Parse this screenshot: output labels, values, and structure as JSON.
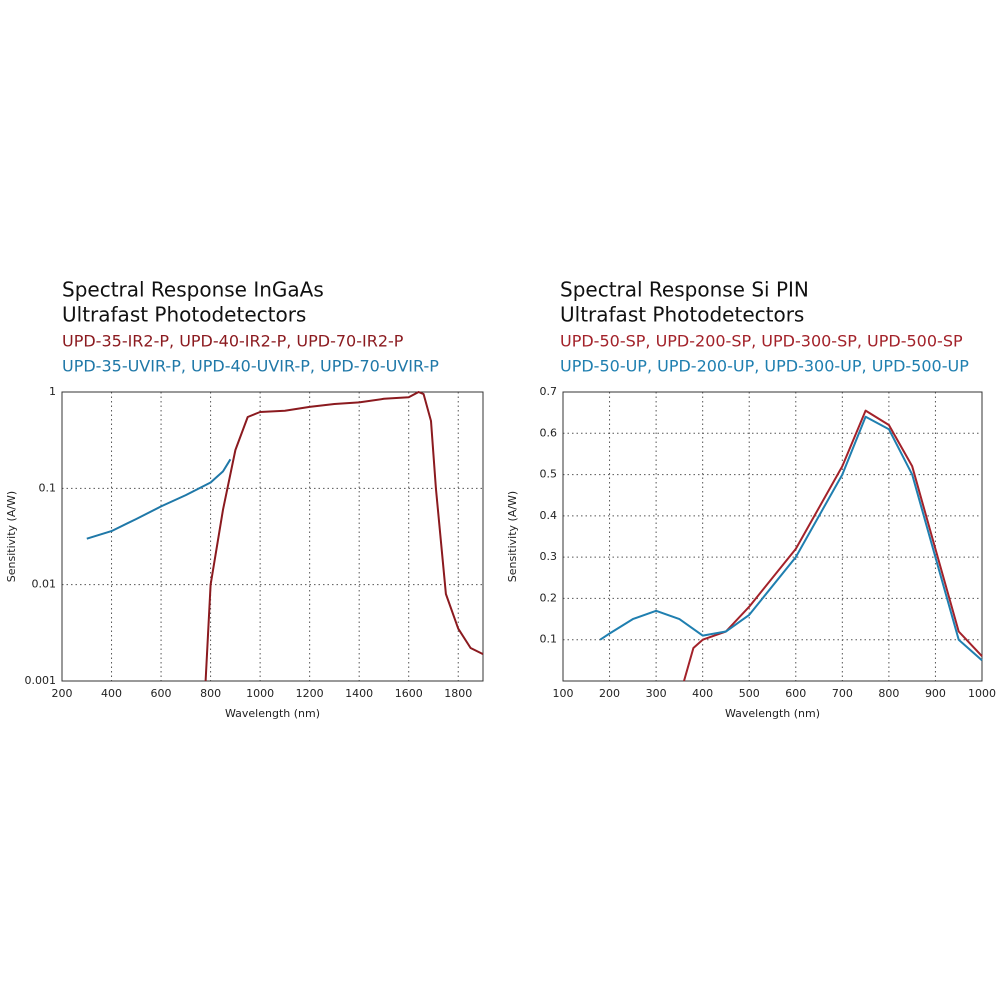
{
  "chart_data": [
    {
      "type": "line",
      "title": "Spectral Response InGaAs",
      "subtitle": "Ultrafast Photodetectors",
      "x_label": "Wavelength (nm)",
      "y_label": "Sensitivity (A/W)",
      "xlim": [
        200,
        1900
      ],
      "xticks": [
        200,
        400,
        600,
        800,
        1000,
        1200,
        1400,
        1600,
        1800
      ],
      "ylim": [
        0.001,
        1
      ],
      "yticks": [
        0.001,
        0.01,
        0.1,
        1
      ],
      "log_y": true,
      "grid": true,
      "series": [
        {
          "name": "UPD-35-IR2-P, UPD-40-IR2-P, UPD-70-IR2-P",
          "color": "#8b1a1f",
          "x": [
            780,
            800,
            850,
            900,
            950,
            1000,
            1100,
            1200,
            1300,
            1400,
            1500,
            1600,
            1640,
            1660,
            1690,
            1710,
            1750,
            1800,
            1850,
            1900
          ],
          "values": [
            0.001,
            0.01,
            0.06,
            0.25,
            0.55,
            0.62,
            0.64,
            0.7,
            0.75,
            0.78,
            0.85,
            0.88,
            1.0,
            0.95,
            0.5,
            0.1,
            0.008,
            0.0035,
            0.0022,
            0.0019
          ]
        },
        {
          "name": "UPD-35-UVIR-P, UPD-40-UVIR-P, UPD-70-UVIR-P",
          "color": "#1f78a8",
          "x": [
            300,
            400,
            500,
            600,
            700,
            800,
            850,
            880
          ],
          "values": [
            0.03,
            0.036,
            0.048,
            0.065,
            0.085,
            0.115,
            0.15,
            0.2
          ]
        }
      ]
    },
    {
      "type": "line",
      "title": "Spectral Response Si PIN",
      "subtitle": "Ultrafast Photodetectors",
      "x_label": "Wavelength (nm)",
      "y_label": "Sensitivity (A/W)",
      "xlim": [
        100,
        1000
      ],
      "xticks": [
        100,
        200,
        300,
        400,
        500,
        600,
        700,
        800,
        900,
        1000
      ],
      "ylim": [
        0,
        0.7
      ],
      "yticks": [
        0.1,
        0.2,
        0.3,
        0.4,
        0.5,
        0.6,
        0.7
      ],
      "log_y": false,
      "grid": true,
      "series": [
        {
          "name": "UPD-50-SP, UPD-200-SP, UPD-300-SP, UPD-500-SP",
          "color": "#a3222a",
          "x": [
            360,
            380,
            400,
            450,
            500,
            600,
            700,
            750,
            800,
            850,
            900,
            950,
            1000
          ],
          "values": [
            0.0,
            0.08,
            0.1,
            0.12,
            0.18,
            0.32,
            0.52,
            0.655,
            0.62,
            0.52,
            0.32,
            0.12,
            0.06
          ]
        },
        {
          "name": "UPD-50-UP, UPD-200-UP, UPD-300-UP, UPD-500-UP",
          "color": "#1f7fb0",
          "x": [
            180,
            200,
            250,
            300,
            350,
            400,
            450,
            500,
            600,
            700,
            750,
            800,
            850,
            900,
            950,
            1000
          ],
          "values": [
            0.1,
            0.115,
            0.15,
            0.17,
            0.15,
            0.11,
            0.12,
            0.16,
            0.3,
            0.5,
            0.64,
            0.61,
            0.5,
            0.3,
            0.1,
            0.05
          ]
        }
      ]
    }
  ]
}
